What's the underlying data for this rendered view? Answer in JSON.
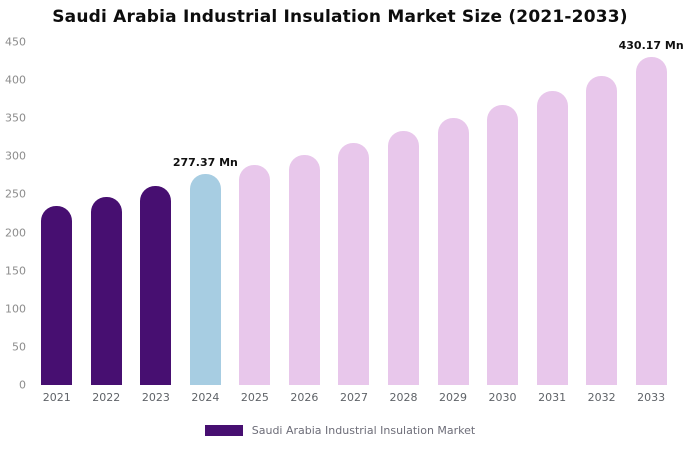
{
  "title": "Saudi Arabia Industrial Insulation Market Size (2021-2033)",
  "legend": {
    "label": "Saudi Arabia Industrial Insulation Market",
    "swatch_color": "#470f71"
  },
  "chart_data": {
    "type": "bar",
    "title": "Saudi Arabia Industrial Insulation Market Size (2021-2033)",
    "categories": [
      "2021",
      "2022",
      "2023",
      "2024",
      "2025",
      "2026",
      "2027",
      "2028",
      "2029",
      "2030",
      "2031",
      "2032",
      "2033"
    ],
    "values": [
      235,
      247,
      261,
      277.37,
      288,
      302,
      317,
      333,
      350,
      367,
      386,
      406,
      430.17
    ],
    "value_labels": [
      "",
      "",
      "",
      "277.37 Mn",
      "",
      "",
      "",
      "",
      "",
      "",
      "",
      "",
      "430.17 Mn"
    ],
    "bar_colors": [
      "#470f71",
      "#470f71",
      "#470f71",
      "#a7cde2",
      "#e8c7eb",
      "#e8c7eb",
      "#e8c7eb",
      "#e8c7eb",
      "#e8c7eb",
      "#e8c7eb",
      "#e8c7eb",
      "#e8c7eb",
      "#e8c7eb"
    ],
    "units": "Mn",
    "xlabel": "",
    "ylabel": "",
    "ylim": [
      0,
      450
    ],
    "yticks": [
      0,
      50,
      100,
      150,
      200,
      250,
      300,
      350,
      400,
      450
    ],
    "grid": false,
    "legend_position": "bottom",
    "legend_entries": [
      "Saudi Arabia Industrial Insulation Market"
    ]
  }
}
